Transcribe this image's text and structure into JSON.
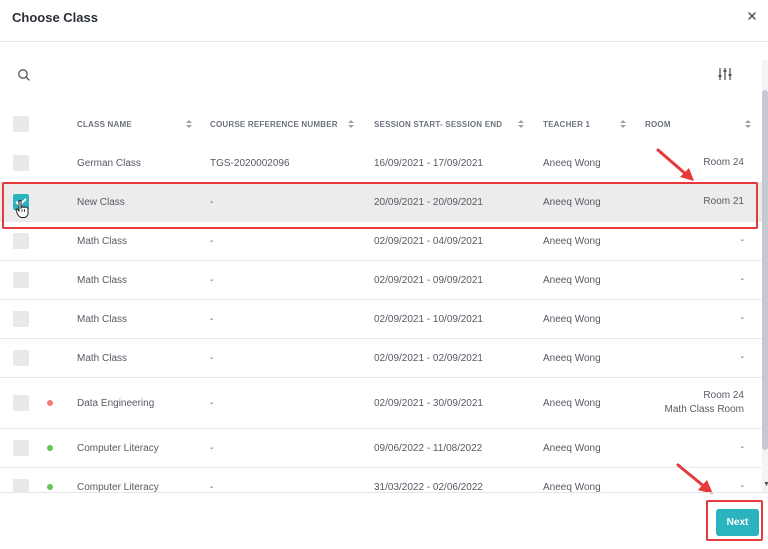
{
  "dialog": {
    "title": "Choose Class"
  },
  "icons": {
    "close": "close-icon",
    "search": "search-icon",
    "filter": "filter-sliders-icon"
  },
  "columns": {
    "class_name": "CLASS NAME",
    "course_ref": "COURSE REFERENCE NUMBER",
    "session": "SESSION START- SESSION END",
    "teacher": "TEACHER 1",
    "room": "ROOM"
  },
  "rows": [
    {
      "name": "German Class",
      "ref": "TGS-2020002096",
      "session": "16/09/2021 - 17/09/2021",
      "teacher": "Aneeq Wong",
      "room": "Room 24",
      "room2": "",
      "checked": false,
      "dot": ""
    },
    {
      "name": "New Class",
      "ref": "-",
      "session": "20/09/2021 - 20/09/2021",
      "teacher": "Aneeq Wong",
      "room": "Room 21",
      "room2": "",
      "checked": true,
      "dot": ""
    },
    {
      "name": "Math Class",
      "ref": "-",
      "session": "02/09/2021 - 04/09/2021",
      "teacher": "Aneeq Wong",
      "room": "-",
      "room2": "",
      "checked": false,
      "dot": ""
    },
    {
      "name": "Math Class",
      "ref": "-",
      "session": "02/09/2021 - 09/09/2021",
      "teacher": "Aneeq Wong",
      "room": "-",
      "room2": "",
      "checked": false,
      "dot": ""
    },
    {
      "name": "Math Class",
      "ref": "-",
      "session": "02/09/2021 - 10/09/2021",
      "teacher": "Aneeq Wong",
      "room": "-",
      "room2": "",
      "checked": false,
      "dot": ""
    },
    {
      "name": "Math Class",
      "ref": "-",
      "session": "02/09/2021 - 02/09/2021",
      "teacher": "Aneeq Wong",
      "room": "-",
      "room2": "",
      "checked": false,
      "dot": ""
    },
    {
      "name": "Data Engineering",
      "ref": "-",
      "session": "02/09/2021 - 30/09/2021",
      "teacher": "Aneeq Wong",
      "room": "Room 24",
      "room2": "Math Class Room",
      "checked": false,
      "dot": "#f07b72"
    },
    {
      "name": "Computer Literacy",
      "ref": "-",
      "session": "09/06/2022 - 11/08/2022",
      "teacher": "Aneeq Wong",
      "room": "-",
      "room2": "",
      "checked": false,
      "dot": "#5fc74f"
    },
    {
      "name": "Computer Literacy",
      "ref": "-",
      "session": "31/03/2022 - 02/06/2022",
      "teacher": "Aneeq Wong",
      "room": "-",
      "room2": "",
      "checked": false,
      "dot": "#5fc74f"
    }
  ],
  "footer": {
    "next_label": "Next"
  },
  "colors": {
    "accent": "#2bb3c0",
    "annotation": "#e5393b",
    "selected_row": "#ececec"
  }
}
